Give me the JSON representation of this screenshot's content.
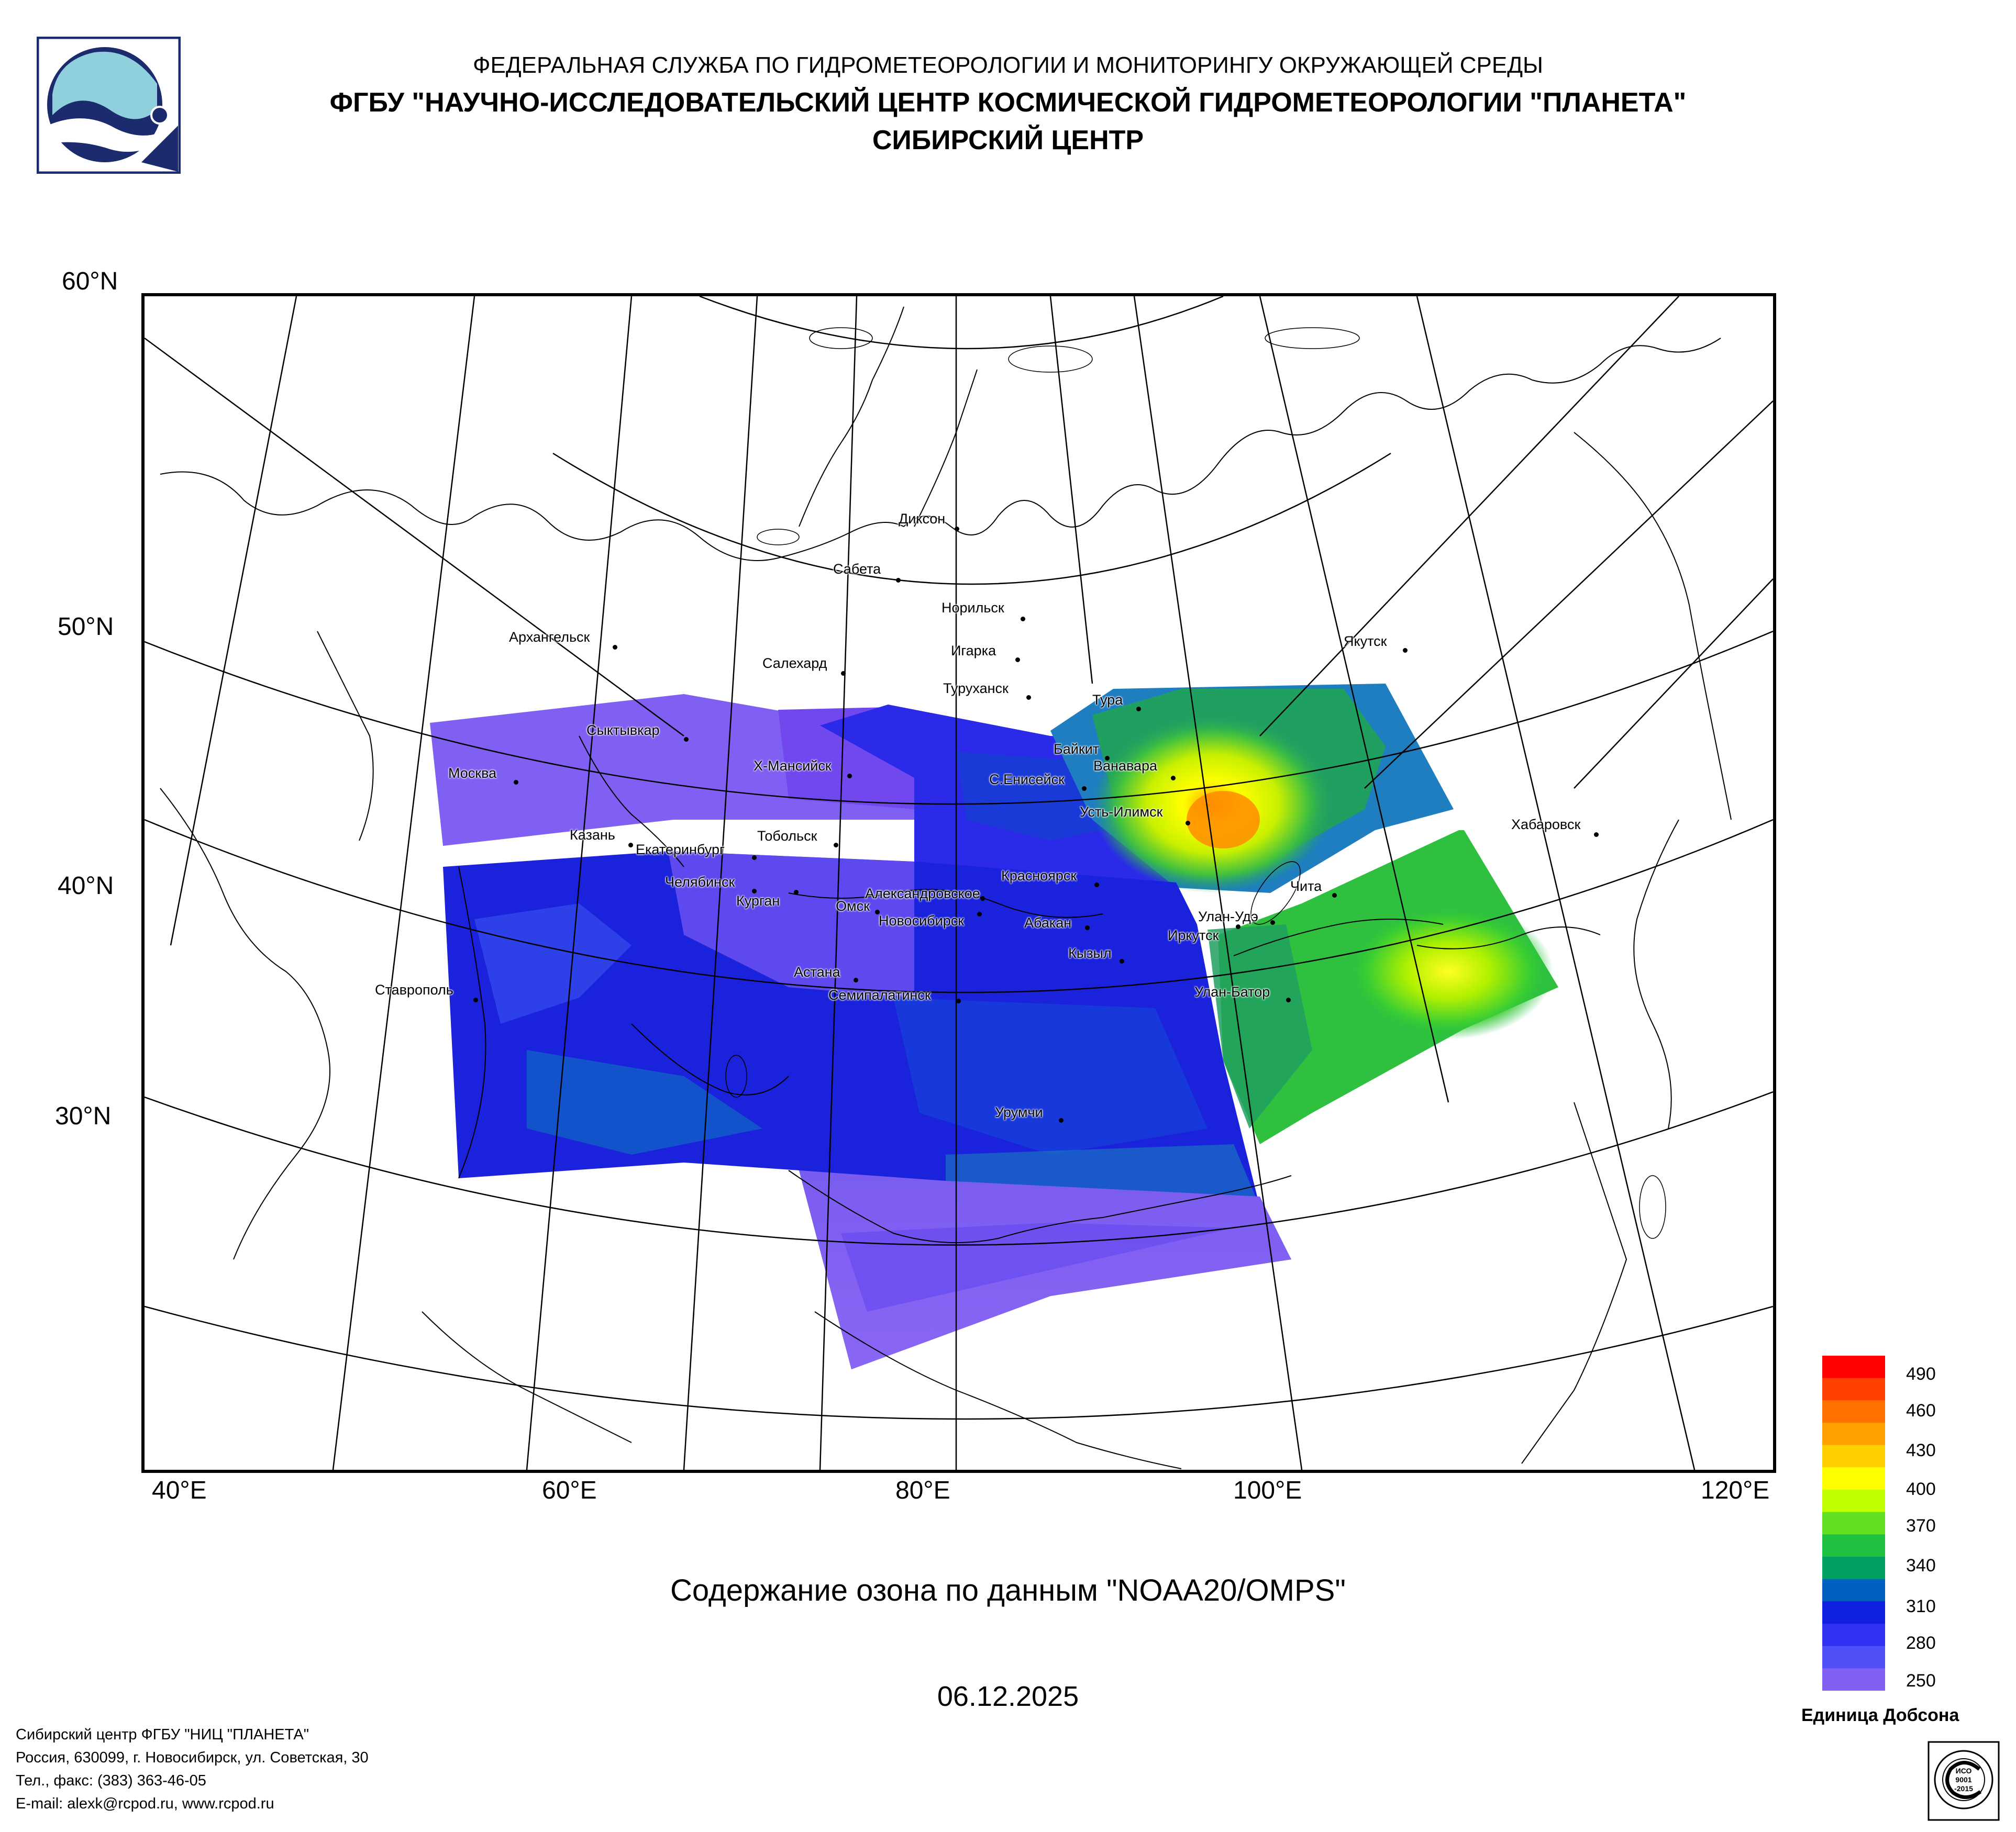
{
  "header": {
    "line1": "ФЕДЕРАЛЬНАЯ СЛУЖБА ПО ГИДРОМЕТЕОРОЛОГИИ И МОНИТОРИНГУ ОКРУЖАЮЩЕЙ СРЕДЫ",
    "line2": "ФГБУ \"НАУЧНО-ИССЛЕДОВАТЕЛЬСКИЙ ЦЕНТР КОСМИЧЕСКОЙ ГИДРОМЕТЕОРОЛОГИИ \"ПЛАНЕТА\"",
    "line3": "СИБИРСКИЙ ЦЕНТР"
  },
  "map": {
    "lat_labels": [
      "60°N",
      "50°N",
      "40°N",
      "30°N"
    ],
    "lon_labels": [
      "40°E",
      "60°E",
      "80°E",
      "100°E",
      "120°E"
    ],
    "cities": [
      "Диксон",
      "Сабета",
      "Норильск",
      "Игарка",
      "Салехард",
      "Туруханск",
      "Якутск",
      "Архангельск",
      "Сыктывкар",
      "Тура",
      "Байкит",
      "Ванавара",
      "С.Енисейск",
      "Х-Мансийск",
      "Москва",
      "Усть-Илимск",
      "Хабаровск",
      "Казань",
      "Екатеринбург",
      "Тобольск",
      "Челябинск",
      "Курган",
      "Александровское",
      "Красноярск",
      "Омск",
      "Новосибирск",
      "Абакан",
      "Чита",
      "Улан-Удэ",
      "Иркутск",
      "Кызыл",
      "Астана",
      "Ставрополь",
      "Семипалатинск",
      "Улан-Батор",
      "Урумчи"
    ]
  },
  "chart_title": "Содержание озона по данным \"NOAA20/OMPS\"",
  "date": "06.12.2025",
  "colorbar": {
    "labels": [
      "490",
      "460",
      "430",
      "400",
      "370",
      "340",
      "310",
      "280",
      "250"
    ],
    "unit": "Единица Добсона",
    "colors": [
      "#ff0000",
      "#ff4000",
      "#ff7000",
      "#ffa000",
      "#ffd000",
      "#ffff00",
      "#c0ff00",
      "#60e020",
      "#20c040",
      "#00a060",
      "#0060c0",
      "#1020e0",
      "#3030f0",
      "#5050f8",
      "#8060f0"
    ]
  },
  "footer": {
    "line1": "Сибирский центр ФГБУ \"НИЦ \"ПЛАНЕТА\"",
    "line2": "Россия, 630099, г. Новосибирск, ул. Советская, 30",
    "line3": "Тел., факс: (383) 363-46-05",
    "line4": "E-mail: alexk@rcpod.ru, www.rcpod.ru"
  },
  "icons": {
    "logo": "planeta-logo-icon",
    "iso": "iso-9001-badge-icon"
  },
  "iso_badge": {
    "line1": "ИСО",
    "line2": "9001",
    "line3": "-2015"
  }
}
